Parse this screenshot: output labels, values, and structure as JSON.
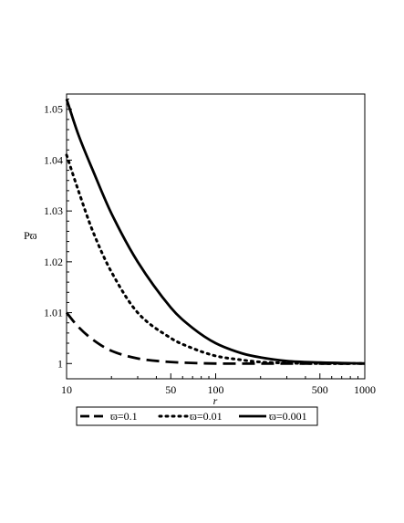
{
  "chart_data": {
    "type": "line",
    "xlabel": "r",
    "ylabel": "Pϖ",
    "xscale": "log",
    "xlim": [
      10,
      1000
    ],
    "ylim": [
      0.997,
      1.053
    ],
    "xticks": [
      {
        "value": 10,
        "label": "10"
      },
      {
        "value": 50,
        "label": "50"
      },
      {
        "value": 100,
        "label": "100"
      },
      {
        "value": 500,
        "label": "500"
      },
      {
        "value": 1000,
        "label": "1000"
      }
    ],
    "yticks": [
      {
        "value": 1.0,
        "label": "1"
      },
      {
        "value": 1.01,
        "label": "1.01"
      },
      {
        "value": 1.02,
        "label": "1.02"
      },
      {
        "value": 1.03,
        "label": "1.03"
      },
      {
        "value": 1.04,
        "label": "1.04"
      },
      {
        "value": 1.05,
        "label": "1.05"
      }
    ],
    "grid": false,
    "legend_position": "bottom",
    "series": [
      {
        "name": "ϖ=0.1",
        "style": "dashed",
        "color": "#000000",
        "x": [
          10,
          12,
          15,
          20,
          30,
          50,
          100,
          200,
          500,
          1000
        ],
        "y": [
          1.01,
          1.0072,
          1.0047,
          1.0025,
          1.001,
          1.0003,
          1.0,
          1.0,
          1.0,
          1.0
        ]
      },
      {
        "name": "ϖ=0.01",
        "style": "dotted",
        "color": "#000000",
        "x": [
          10,
          12,
          15,
          20,
          30,
          50,
          70,
          100,
          150,
          200,
          300,
          500,
          1000
        ],
        "y": [
          1.041,
          1.034,
          1.026,
          1.018,
          1.01,
          1.005,
          1.003,
          1.0015,
          1.0007,
          1.0003,
          1.0001,
          1.0,
          1.0
        ]
      },
      {
        "name": "ϖ=0.001",
        "style": "solid",
        "color": "#000000",
        "x": [
          10,
          12,
          15,
          20,
          30,
          50,
          70,
          100,
          150,
          200,
          300,
          500,
          700,
          1000
        ],
        "y": [
          1.052,
          1.045,
          1.038,
          1.0295,
          1.02,
          1.011,
          1.007,
          1.004,
          1.002,
          1.0012,
          1.0005,
          1.0002,
          1.0001,
          1.0
        ]
      }
    ]
  }
}
